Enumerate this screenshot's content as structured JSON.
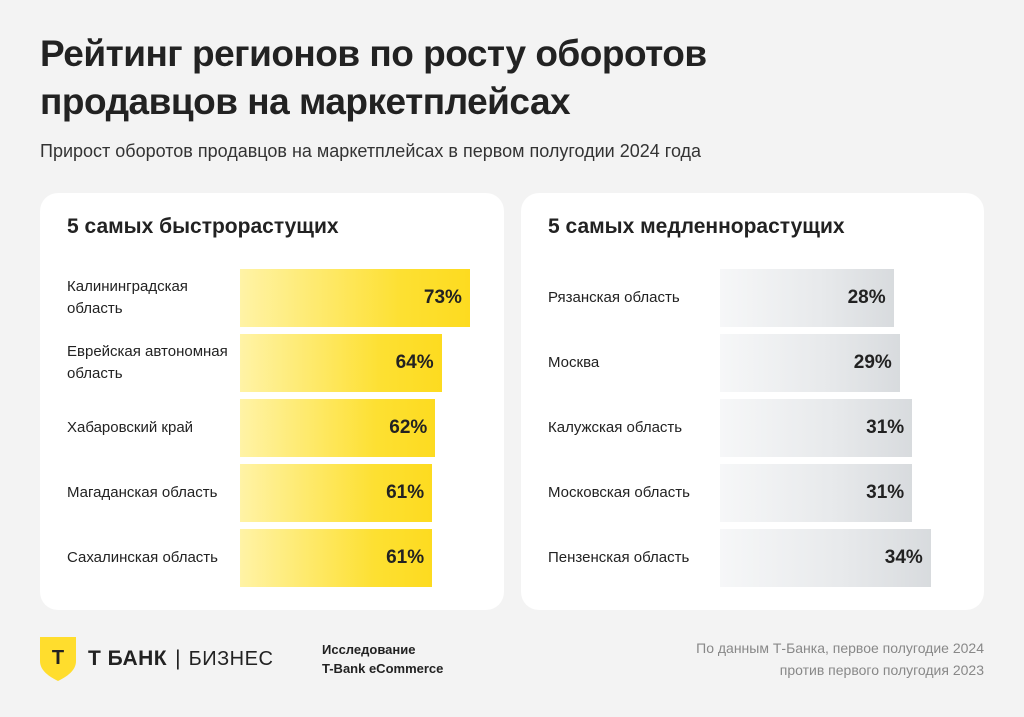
{
  "title": "Рейтинг регионов по росту оборотов продавцов на маркетплейсах",
  "subtitle": "Прирост оборотов продавцов на маркетплейсах в первом полугодии 2024 года",
  "chart_data": [
    {
      "type": "bar",
      "orientation": "horizontal",
      "title": "5 самых быстрорастущих",
      "categories": [
        "Калининградская область",
        "Еврейская автономная область",
        "Хабаровский край",
        "Магаданская область",
        "Сахалинская область"
      ],
      "values": [
        73,
        64,
        62,
        61,
        61
      ],
      "labels": [
        "73%",
        "64%",
        "62%",
        "61%",
        "61%"
      ],
      "unit": "%",
      "color": "#fddd2d"
    },
    {
      "type": "bar",
      "orientation": "horizontal",
      "title": "5 самых медленнорастущих",
      "categories": [
        "Рязанская область",
        "Москва",
        "Калужская область",
        "Московская область",
        "Пензенская область"
      ],
      "values": [
        28,
        29,
        31,
        31,
        34
      ],
      "labels": [
        "28%",
        "29%",
        "31%",
        "31%",
        "34%"
      ],
      "unit": "%",
      "color": "#dcdfe2"
    }
  ],
  "footer": {
    "brand": "Т БАНК",
    "brand_sub": "БИЗНЕС",
    "shield_letter": "Т",
    "brand_color": "#ffdd2d",
    "study_line1": "Исследование",
    "study_line2": "T-Bank eCommerce",
    "source_line1": "По данным Т-Банка, первое полугодие 2024",
    "source_line2": "против первого полугодия 2023"
  }
}
